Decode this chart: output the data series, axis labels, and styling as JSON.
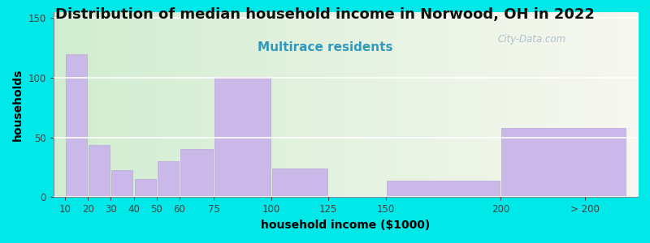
{
  "title": "Distribution of median household income in Norwood, OH in 2022",
  "subtitle": "Multirace residents",
  "xlabel": "household income ($1000)",
  "ylabel": "households",
  "bar_labels": [
    "10",
    "20",
    "30",
    "40",
    "50",
    "60",
    "75",
    "100",
    "125",
    "150",
    "200",
    "> 200"
  ],
  "bar_heights": [
    120,
    0,
    44,
    23,
    15,
    30,
    40,
    101,
    24,
    0,
    14,
    58
  ],
  "bar_color": "#c9b8e8",
  "bar_edgecolor": "#b8a8d8",
  "background_outer": "#00e8e8",
  "yticks": [
    0,
    50,
    100,
    150
  ],
  "title_fontsize": 13,
  "subtitle_fontsize": 11,
  "subtitle_color": "#3399bb",
  "axis_label_fontsize": 10,
  "tick_fontsize": 8.5,
  "watermark_text": "City-Data.com",
  "watermark_color": "#aabbc8",
  "ylim": [
    0,
    155
  ],
  "bar_lefts": [
    10,
    20,
    20,
    30,
    40,
    50,
    60,
    75,
    100,
    125,
    150,
    200
  ],
  "bar_widths": [
    10,
    0,
    10,
    10,
    10,
    10,
    15,
    25,
    25,
    25,
    50,
    55
  ],
  "xtick_positions": [
    10,
    20,
    30,
    40,
    50,
    60,
    75,
    100,
    125,
    150,
    200,
    237
  ],
  "xlim": [
    5,
    260
  ]
}
